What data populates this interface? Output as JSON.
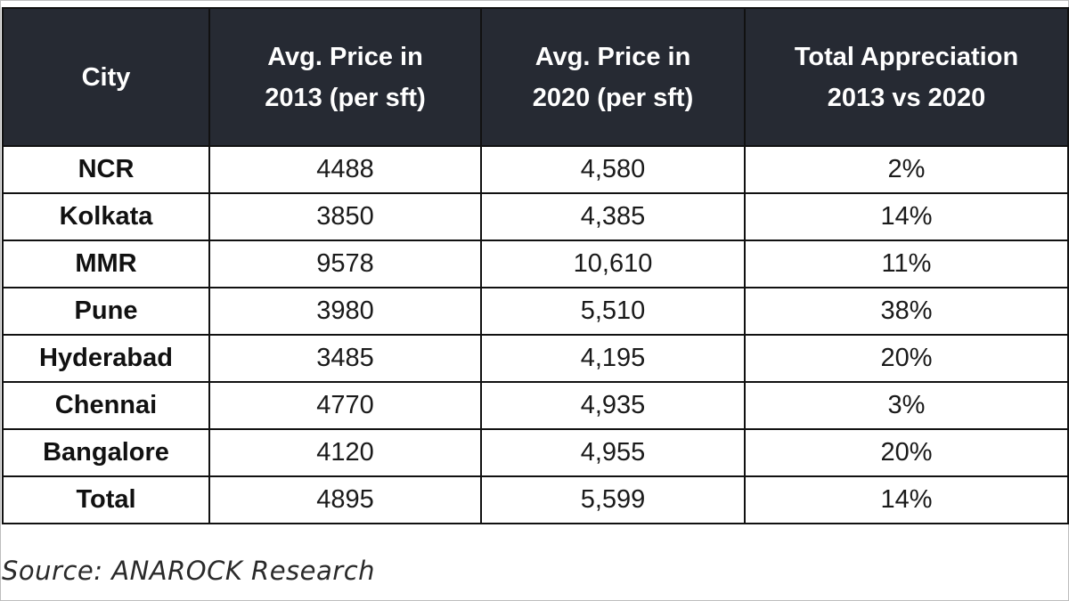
{
  "table": {
    "headers": {
      "city": "City",
      "price_2013_line1": "Avg. Price in",
      "price_2013_line2": "2013 (per sft)",
      "price_2020_line1": "Avg. Price in",
      "price_2020_line2": "2020 (per sft)",
      "appreciation_line1": "Total Appreciation",
      "appreciation_line2": "2013 vs 2020"
    },
    "rows": [
      {
        "city": "NCR",
        "price_2013": "4488",
        "price_2020": "4,580",
        "appreciation": "2%"
      },
      {
        "city": "Kolkata",
        "price_2013": "3850",
        "price_2020": "4,385",
        "appreciation": "14%"
      },
      {
        "city": "MMR",
        "price_2013": "9578",
        "price_2020": "10,610",
        "appreciation": "11%"
      },
      {
        "city": "Pune",
        "price_2013": "3980",
        "price_2020": "5,510",
        "appreciation": "38%"
      },
      {
        "city": "Hyderabad",
        "price_2013": "3485",
        "price_2020": "4,195",
        "appreciation": "20%"
      },
      {
        "city": "Chennai",
        "price_2013": "4770",
        "price_2020": "4,935",
        "appreciation": "3%"
      },
      {
        "city": "Bangalore",
        "price_2013": "4120",
        "price_2020": "4,955",
        "appreciation": "20%"
      },
      {
        "city": "Total",
        "price_2013": "4895",
        "price_2020": "5,599",
        "appreciation": "14%"
      }
    ]
  },
  "source": "Source: ANAROCK Research",
  "colors": {
    "header_background": "#262a33",
    "header_text": "#ffffff",
    "border": "#111111"
  }
}
